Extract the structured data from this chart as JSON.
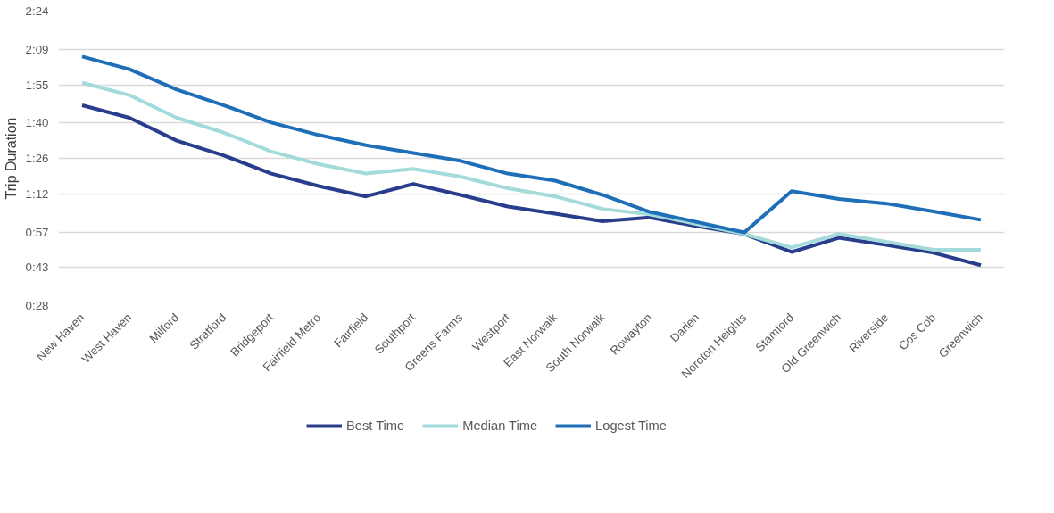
{
  "chart_data": {
    "type": "line",
    "ylabel": "Trip Duration",
    "categories": [
      "New Haven",
      "West Haven",
      "Milford",
      "Stratford",
      "Bridgeport",
      "Fairfield Metro",
      "Fairfield",
      "Southport",
      "Greens Farms",
      "Westport",
      "East Norwalk",
      "South Norwalk",
      "Rowayton",
      "Darien",
      "Noroton Heights",
      "Stamford",
      "Old Greenwich",
      "Riverside",
      "Cos Cob",
      "Greenwich"
    ],
    "series": [
      {
        "name": "Best Time",
        "color": "#283d8c",
        "values": [
          106.9,
          102,
          93,
          87.1,
          80,
          75.1,
          71,
          75.9,
          71.6,
          67,
          64.2,
          61.2,
          62.7,
          59.3,
          56.2,
          49.1,
          54.7,
          51.9,
          48.8,
          43.9
        ]
      },
      {
        "name": "Median Time",
        "color": "#a3dbdb",
        "values": [
          115.8,
          110.9,
          102,
          96.1,
          88.7,
          83.7,
          80,
          81.9,
          78.8,
          74.2,
          71,
          66.1,
          63.9,
          60.1,
          56.2,
          50.9,
          56.2,
          53.1,
          50,
          50
        ]
      },
      {
        "name": "Logest Time",
        "color": "#1f6fb8",
        "values": [
          126.1,
          121.1,
          113.1,
          106.9,
          100.1,
          95.2,
          91.2,
          88.1,
          85,
          80,
          77.2,
          71.6,
          64.9,
          60.9,
          56.8,
          73.1,
          70,
          68.2,
          65.1,
          61.8
        ]
      }
    ],
    "ylim": [
      28,
      144
    ],
    "yticks": [
      {
        "value": 28,
        "label": "0:28"
      },
      {
        "value": 43,
        "label": "0:43"
      },
      {
        "value": 57,
        "label": "0:57"
      },
      {
        "value": 72,
        "label": "1:12"
      },
      {
        "value": 86,
        "label": "1:26"
      },
      {
        "value": 100,
        "label": "1:40"
      },
      {
        "value": 115,
        "label": "1:55"
      },
      {
        "value": 129,
        "label": "2:09"
      },
      {
        "value": 144,
        "label": "2:24"
      }
    ],
    "grid": "y",
    "legend": "bottom",
    "line_style": "solid",
    "marker": "none"
  }
}
